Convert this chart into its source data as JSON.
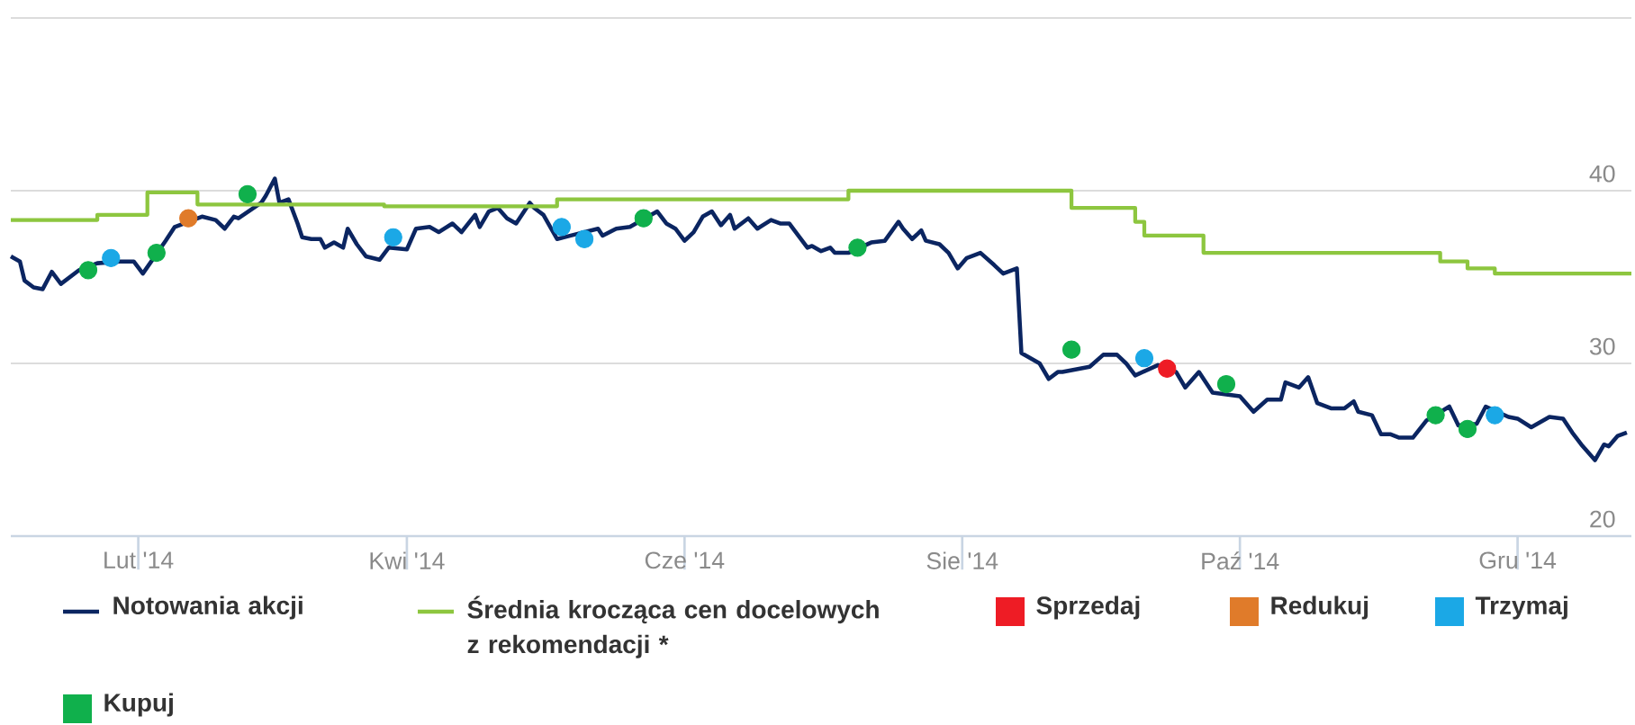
{
  "chart_data": {
    "type": "line",
    "xlim": [
      "2014-01-04",
      "2014-12-26"
    ],
    "xticks": [
      {
        "value": "2014-02-01",
        "label": "Lut '14"
      },
      {
        "value": "2014-04-01",
        "label": "Kwi '14"
      },
      {
        "value": "2014-06-01",
        "label": "Cze '14"
      },
      {
        "value": "2014-08-01",
        "label": "Sie '14"
      },
      {
        "value": "2014-10-01",
        "label": "Paź '14"
      },
      {
        "value": "2014-12-01",
        "label": "Gru '14"
      }
    ],
    "ylim": [
      20,
      50
    ],
    "yticks": [
      20,
      30,
      40,
      {
        "value": 50,
        "label": null
      }
    ],
    "grid": "y",
    "legend": "bottom",
    "series": [
      {
        "name": "Notowania akcji",
        "color": "#0b2561",
        "marker": "none",
        "x": [
          "2014-01-04",
          "2014-01-06",
          "2014-01-07",
          "2014-01-09",
          "2014-01-11",
          "2014-01-13",
          "2014-01-15",
          "2014-01-19",
          "2014-01-23",
          "2014-01-28",
          "2014-01-31",
          "2014-02-02",
          "2014-02-07",
          "2014-02-09",
          "2014-02-15",
          "2014-02-18",
          "2014-02-20",
          "2014-02-22",
          "2014-02-23",
          "2014-02-28",
          "2014-03-01",
          "2014-03-03",
          "2014-03-04",
          "2014-03-06",
          "2014-03-08",
          "2014-03-09",
          "2014-03-11",
          "2014-03-13",
          "2014-03-14",
          "2014-03-16",
          "2014-03-18",
          "2014-03-19",
          "2014-03-21",
          "2014-03-23",
          "2014-03-26",
          "2014-03-28",
          "2014-04-01",
          "2014-04-03",
          "2014-04-06",
          "2014-04-08",
          "2014-04-11",
          "2014-04-13",
          "2014-04-16",
          "2014-04-17",
          "2014-04-19",
          "2014-04-21",
          "2014-04-23",
          "2014-04-25",
          "2014-04-28",
          "2014-04-29",
          "2014-05-01",
          "2014-05-04",
          "2014-05-07",
          "2014-05-13",
          "2014-05-14",
          "2014-05-17",
          "2014-05-20",
          "2014-05-26",
          "2014-05-28",
          "2014-05-30",
          "2014-06-01",
          "2014-06-03",
          "2014-06-05",
          "2014-06-07",
          "2014-06-09",
          "2014-06-11",
          "2014-06-12",
          "2014-06-15",
          "2014-06-17",
          "2014-06-20",
          "2014-06-22",
          "2014-06-24",
          "2014-06-28",
          "2014-06-29",
          "2014-07-01",
          "2014-07-03",
          "2014-07-04",
          "2014-07-07",
          "2014-07-12",
          "2014-07-15",
          "2014-07-18",
          "2014-07-19",
          "2014-07-21",
          "2014-07-23",
          "2014-07-24",
          "2014-07-27",
          "2014-07-29",
          "2014-07-31",
          "2014-08-02",
          "2014-08-05",
          "2014-08-08",
          "2014-08-10",
          "2014-08-13",
          "2014-08-14",
          "2014-08-16",
          "2014-08-18",
          "2014-08-20",
          "2014-08-22",
          "2014-08-23",
          "2014-08-29",
          "2014-09-01",
          "2014-09-04",
          "2014-09-06",
          "2014-09-08",
          "2014-09-13",
          "2014-09-17",
          "2014-09-19",
          "2014-09-22",
          "2014-09-25",
          "2014-10-01",
          "2014-10-04",
          "2014-10-07",
          "2014-10-10",
          "2014-10-11",
          "2014-10-14",
          "2014-10-16",
          "2014-10-18",
          "2014-10-21",
          "2014-10-24",
          "2014-10-26",
          "2014-10-27",
          "2014-10-30",
          "2014-11-01",
          "2014-11-03",
          "2014-11-05",
          "2014-11-08",
          "2014-11-11",
          "2014-11-16",
          "2014-11-18",
          "2014-11-22",
          "2014-11-24",
          "2014-11-29",
          "2014-12-01",
          "2014-12-04",
          "2014-12-08",
          "2014-12-11",
          "2014-12-13",
          "2014-12-15",
          "2014-12-18",
          "2014-12-20",
          "2014-12-21",
          "2014-12-23",
          "2014-12-25"
        ],
        "values": [
          36.2,
          35.9,
          34.8,
          34.4,
          34.3,
          35.3,
          34.6,
          35.4,
          35.8,
          35.9,
          35.9,
          35.2,
          37.1,
          37.9,
          38.5,
          38.3,
          37.8,
          38.5,
          38.4,
          39.3,
          39.7,
          40.7,
          39.3,
          39.5,
          38.1,
          37.3,
          37.2,
          37.2,
          36.7,
          37.0,
          36.7,
          37.8,
          36.9,
          36.2,
          36.0,
          36.7,
          36.6,
          37.8,
          37.9,
          37.6,
          38.1,
          37.6,
          38.6,
          37.9,
          38.8,
          39.0,
          38.4,
          38.1,
          39.3,
          39.0,
          38.6,
          37.2,
          37.4,
          37.8,
          37.4,
          37.8,
          37.9,
          38.8,
          38.1,
          37.8,
          37.1,
          37.6,
          38.5,
          38.8,
          38.0,
          38.6,
          37.8,
          38.4,
          37.8,
          38.3,
          38.1,
          38.1,
          36.7,
          36.8,
          36.5,
          36.7,
          36.4,
          36.4,
          37.0,
          37.1,
          38.2,
          37.8,
          37.2,
          37.7,
          37.1,
          36.9,
          36.4,
          35.5,
          36.1,
          36.4,
          35.7,
          35.2,
          35.5,
          30.6,
          30.3,
          30.0,
          29.1,
          29.5,
          29.5,
          29.8,
          30.5,
          30.5,
          30.0,
          29.3,
          29.9,
          29.5,
          28.6,
          29.5,
          28.3,
          28.1,
          27.2,
          27.9,
          27.9,
          28.9,
          28.6,
          29.2,
          27.7,
          27.4,
          27.4,
          27.8,
          27.2,
          27.0,
          25.9,
          25.9,
          25.7,
          25.7,
          26.7,
          27.5,
          26.4,
          26.5,
          27.5,
          26.9,
          26.8,
          26.3,
          26.9,
          26.8,
          26.0,
          25.3,
          24.4,
          25.3,
          25.2,
          25.8,
          26.0
        ]
      },
      {
        "name": "Średnia krocząca cen docelowych z rekomendacji *",
        "type": "step",
        "color": "#8dc63f",
        "marker": "none",
        "x": [
          "2014-01-04",
          "2014-01-23",
          "2014-02-03",
          "2014-02-14",
          "2014-03-27",
          "2014-05-04",
          "2014-07-07",
          "2014-08-25",
          "2014-09-08",
          "2014-09-10",
          "2014-09-23",
          "2014-11-14",
          "2014-11-20",
          "2014-11-26",
          "2014-12-26"
        ],
        "values": [
          38.3,
          38.6,
          39.9,
          39.2,
          39.1,
          39.5,
          40.0,
          39.0,
          38.2,
          37.4,
          36.4,
          35.9,
          35.5,
          35.2,
          35.2
        ]
      },
      {
        "name": "Sprzedaj",
        "type": "scatter",
        "color": "#ee1c25",
        "marker": "circle",
        "x": [
          "2014-09-15"
        ],
        "values": [
          29.7
        ]
      },
      {
        "name": "Redukuj",
        "type": "scatter",
        "color": "#e07b2a",
        "marker": "circle",
        "x": [
          "2014-02-12"
        ],
        "values": [
          38.4
        ]
      },
      {
        "name": "Trzymaj",
        "type": "scatter",
        "color": "#1ba8e6",
        "marker": "circle",
        "x": [
          "2014-01-26",
          "2014-03-29",
          "2014-05-05",
          "2014-05-10",
          "2014-09-10",
          "2014-11-26"
        ],
        "values": [
          36.1,
          37.3,
          37.9,
          37.2,
          30.3,
          27.0
        ]
      },
      {
        "name": "Kupuj",
        "type": "scatter",
        "color": "#10b04c",
        "marker": "circle",
        "x": [
          "2014-01-21",
          "2014-02-05",
          "2014-02-25",
          "2014-05-23",
          "2014-07-09",
          "2014-08-25",
          "2014-09-28",
          "2014-11-13",
          "2014-11-20"
        ],
        "values": [
          35.4,
          36.4,
          39.8,
          38.4,
          36.7,
          30.8,
          28.8,
          27.0,
          26.2
        ]
      }
    ]
  }
}
